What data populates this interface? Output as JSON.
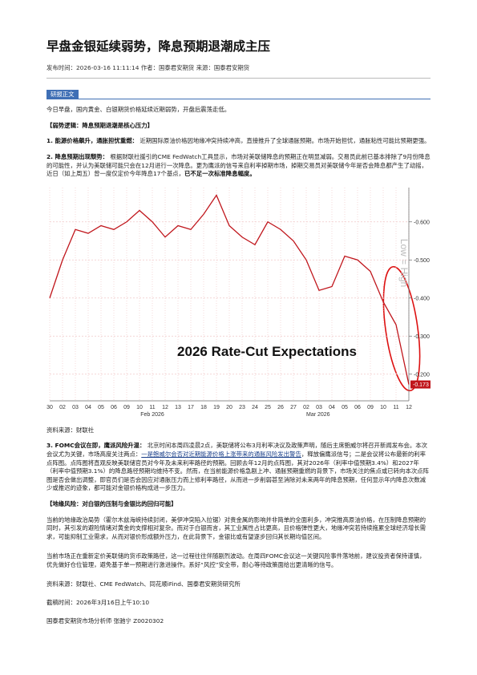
{
  "title": "早盘金银延续弱势，降息预期退潮成主压",
  "meta": "发布时间：2026-03-16 11:11:14 作者：国泰君安期货 来源：国泰君安期货",
  "tag": "研报正文",
  "intro": "今日早盘，国内黄金、白银期货价格延续近期弱势，开盘后震荡走低。",
  "section1": "【弱势逻辑：降息预期退潮是核心压力】",
  "point1": {
    "lead": "1. 能源价格飙升，通胀担忧重燃：",
    "body": "近期国际原油价格因地缘冲突持续冲高，直接推升了全球通胀预期。市场开始担忧，通胀粘性可能比预期更强。"
  },
  "point2": {
    "lead": "2. 降息预期出现颓势：",
    "body": "根据财联社援引的CME FedWatch工具显示，市场对美联储降息的预期正在明显减弱。交易员此前已基本排除了9月份降息的可能性，并认为美联储可能只会在12月进行一次降息。更为鹰派的信号来自利率掉期市场，掉期交易员对美联储今年是否会降息都产生了动摇，近日（如上周五）曾一度仅定价今年降息17个基点，",
    "tail": "已不足一次标准降息幅度。"
  },
  "chart_data": {
    "type": "line",
    "annotation": "2026 Rate-Cut Expectations",
    "axis_note": "Low = High",
    "categories": [
      "30",
      "02",
      "03",
      "04",
      "05",
      "06",
      "09",
      "10",
      "11",
      "12",
      "13",
      "17",
      "18",
      "19",
      "20",
      "23",
      "24",
      "25",
      "26",
      "27",
      "02",
      "03",
      "04",
      "05",
      "06",
      "09",
      "10",
      "11",
      "12"
    ],
    "month_labels": [
      "Feb 2026",
      "Mar 2026"
    ],
    "series": [
      {
        "color": "#c0161c",
        "values": [
          -0.4,
          -0.5,
          -0.58,
          -0.57,
          -0.59,
          -0.58,
          -0.6,
          -0.63,
          -0.6,
          -0.56,
          -0.59,
          -0.58,
          -0.62,
          -0.67,
          -0.59,
          -0.56,
          -0.54,
          -0.6,
          -0.58,
          -0.55,
          -0.5,
          -0.42,
          -0.43,
          -0.51,
          -0.5,
          -0.47,
          -0.39,
          -0.33,
          -0.173
        ]
      }
    ],
    "ylim": [
      -0.13,
      -0.69
    ],
    "yticks": [
      {
        "value": -0.6,
        "label": "-0.600"
      },
      {
        "value": -0.5,
        "label": "-0.500"
      },
      {
        "value": -0.4,
        "label": "-0.400"
      },
      {
        "value": -0.3,
        "label": "-0.300"
      },
      {
        "value": -0.2,
        "label": "-0.200"
      }
    ],
    "grid": true
  },
  "source1": "资料来源：财联社",
  "point3": {
    "lead": "3. FOMC会议在即，鹰派风险升温：",
    "body": "北京时间本周四凌晨2点，美联储将公布3月利率决议及政策声明，随后主席鲍威尔将召开新闻发布会。本次会议尤为关键，市场高度关注两点：",
    "link": "一是鲍威尔会否对近期能源价格上涨带来的通胀风险发出警告",
    "rest": "，释放偏鹰派信号；二是会议将公布最新的利率点阵图。点阵图将直观反映美联储官员对今年及未来利率路径的预期。回顾去年12月的点阵图，其对2026年（利率中值预期3.4%）和2027年（利率中值预期3.1%）的降息路径预期均维持不变。然而，在当前能源价格急剧上冲、通胀预期重燃的背景下，市场关注的焦点或已转向本次点阵图是否会做出调整，即官员们是否会因应对通胀压力而上修利率路径，从而进一步削弱甚至消除对未来两年的降息预期，任何显示年内降息次数减少或推迟的迹象，都可能对金银价格构成进一步压力。"
  },
  "section2": "【地缘风险：对白银的压制与金银比的回归可能】",
  "para4": "当前的地缘政治局势（霍尔木兹海峡持续封闭，美伊冲突陷入拉锯）对贵金属的影响并非简单的全面利多，冲突推高原油价格，在压制降息预期的同时，其引发的避险情绪对黄金的支撑相对复杂。而对于白银而言，其工业属性占比更高，且价格弹性更大，地缘冲突若持续拖累全球经济增长需求，可能抑制工业需求，从而对银价形成额外压力，在此背景下，金银比或有望逐步回归其长期均值区间。",
  "para5": "当前市场正在重新定价美联储的货币政策路径，这一过程往往伴随剧烈波动。在周四FOMC会议这一关键风险事件落地前，建议投资者保持谨慎，优先做好仓位管理，避免基于单一预期进行激进操作。系好“风控”安全带，耐心等待政策面给出更清晰的信号。",
  "source2": "资料来源：财联社、CME FedWatch、同花顺iFind、国泰君安期货研究所",
  "deadline": "截稿时间：2026年3月16日上午10:10",
  "analyst": "国泰君安期货市场分析师 张驰宁 Z0020302"
}
